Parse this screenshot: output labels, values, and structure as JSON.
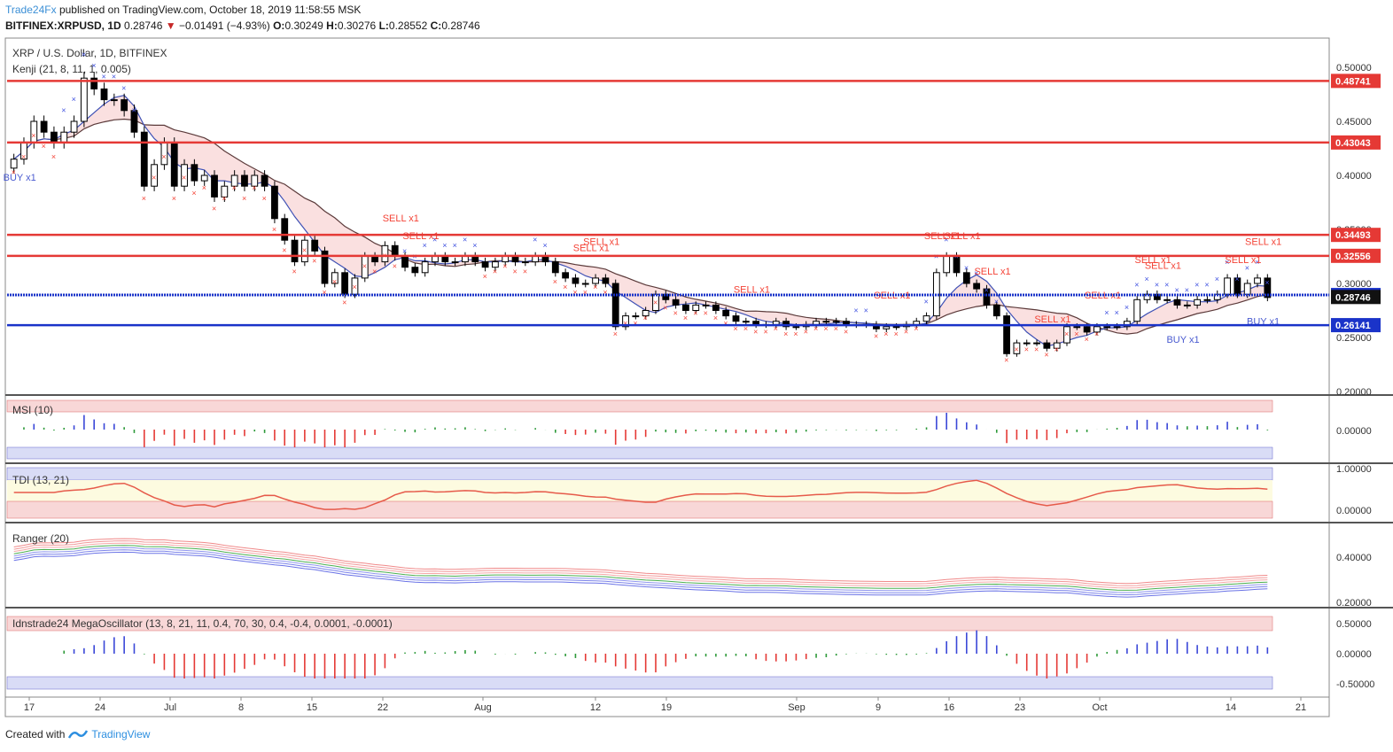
{
  "header": {
    "publisher": "Trade24Fx",
    "published_text": "published on TradingView.com, October 18, 2019 11:58:55 MSK",
    "symbol_line": "BITFINEX:XRPUSD, 1D",
    "last": "0.28746",
    "change": "−0.01491 (−4.93%)",
    "o_label": "O:",
    "o": "0.30249",
    "h_label": "H:",
    "h": "0.30276",
    "l_label": "L:",
    "l": "0.28552",
    "c_label": "C:",
    "c": "0.28746"
  },
  "main_pane": {
    "legend_title": "XRP / U.S. Dollar, 1D, BITFINEX",
    "legend_indicator": "Kenji (21, 8, 11, 1, 0.005)",
    "price_ticks": [
      "0.50000",
      "0.45000",
      "0.40000",
      "0.35000",
      "0.30000",
      "0.25000",
      "0.20000"
    ],
    "levels": [
      {
        "value": "0.48741",
        "color": "#e53935",
        "style": "solid"
      },
      {
        "value": "0.43043",
        "color": "#e53935",
        "style": "solid"
      },
      {
        "value": "0.34493",
        "color": "#e53935",
        "style": "solid"
      },
      {
        "value": "0.32556",
        "color": "#e53935",
        "style": "solid"
      },
      {
        "value": "0.28930",
        "color": "#1a33c9",
        "style": "dotted"
      },
      {
        "value": "0.28746",
        "color": "#111111",
        "style": "none"
      },
      {
        "value": "0.26141",
        "color": "#1a33c9",
        "style": "solid"
      }
    ],
    "signal_labels": {
      "sell": "SELL x1",
      "buy": "BUY x1"
    }
  },
  "x_axis": {
    "labels": [
      "17",
      "24",
      "Jul",
      "8",
      "15",
      "22",
      "Aug",
      "12",
      "19",
      "Sep",
      "9",
      "16",
      "23",
      "Oct",
      "14",
      "21"
    ]
  },
  "panes": {
    "msi": {
      "label": "MSI (10)",
      "ticks": [
        "0.00000"
      ]
    },
    "tdi": {
      "label": "TDI (13, 21)",
      "ticks": [
        "1.00000",
        "0.00000"
      ]
    },
    "ranger": {
      "label": "Ranger (20)",
      "ticks": [
        "0.40000",
        "0.20000"
      ]
    },
    "mega": {
      "label": "Idnstrade24 MegaOscillator (13, 8, 21, 11, 0.4, 70, 30, 0.4, -0.4, 0.0001, -0.0001)",
      "ticks": [
        "0.50000",
        "0.00000",
        "-0.50000"
      ]
    }
  },
  "colors": {
    "up_candle": "#ffffff",
    "down_candle": "#000000",
    "sell_marker": "#f44336",
    "buy_marker": "#3f51e0",
    "level_red": "#e53935",
    "level_blue": "#1a33c9"
  },
  "chart_data": {
    "type": "candlestick",
    "title": "XRP / U.S. Dollar, 1D, BITFINEX",
    "x_labels": [
      "17",
      "24",
      "Jul",
      "8",
      "15",
      "22",
      "Aug",
      "12",
      "19",
      "Sep",
      "9",
      "16",
      "23",
      "Oct",
      "14",
      "21"
    ],
    "ylim": [
      0.2,
      0.5
    ],
    "close_approx": [
      0.415,
      0.43,
      0.45,
      0.44,
      0.43,
      0.44,
      0.45,
      0.49,
      0.48,
      0.47,
      0.47,
      0.46,
      0.44,
      0.39,
      0.41,
      0.43,
      0.39,
      0.41,
      0.395,
      0.4,
      0.38,
      0.39,
      0.4,
      0.39,
      0.4,
      0.39,
      0.36,
      0.34,
      0.32,
      0.34,
      0.33,
      0.3,
      0.31,
      0.29,
      0.305,
      0.325,
      0.32,
      0.335,
      0.325,
      0.315,
      0.31,
      0.32,
      0.325,
      0.32,
      0.32,
      0.325,
      0.32,
      0.315,
      0.32,
      0.325,
      0.32,
      0.32,
      0.325,
      0.32,
      0.31,
      0.305,
      0.3,
      0.3,
      0.305,
      0.3,
      0.26,
      0.27,
      0.27,
      0.275,
      0.29,
      0.285,
      0.28,
      0.275,
      0.28,
      0.28,
      0.275,
      0.27,
      0.265,
      0.265,
      0.262,
      0.262,
      0.265,
      0.26,
      0.26,
      0.262,
      0.265,
      0.265,
      0.265,
      0.262,
      0.262,
      0.262,
      0.258,
      0.26,
      0.26,
      0.262,
      0.265,
      0.27,
      0.31,
      0.325,
      0.31,
      0.3,
      0.295,
      0.28,
      0.27,
      0.235,
      0.245,
      0.245,
      0.245,
      0.24,
      0.245,
      0.26,
      0.26,
      0.255,
      0.26,
      0.26,
      0.26,
      0.265,
      0.285,
      0.29,
      0.285,
      0.285,
      0.28,
      0.28,
      0.285,
      0.285,
      0.29,
      0.305,
      0.29,
      0.3,
      0.305,
      0.287
    ],
    "levels": [
      0.48741,
      0.43043,
      0.34493,
      0.32556,
      0.2893,
      0.28746,
      0.26141
    ],
    "last_close": 0.28746,
    "indicators": [
      "Kenji (21, 8, 11, 1, 0.005)",
      "MSI (10)",
      "TDI (13, 21)",
      "Ranger (20)",
      "Idnstrade24 MegaOscillator (13, 8, 21, 11, 0.4, 70, 30, 0.4, -0.4, 0.0001, -0.0001)"
    ]
  }
}
